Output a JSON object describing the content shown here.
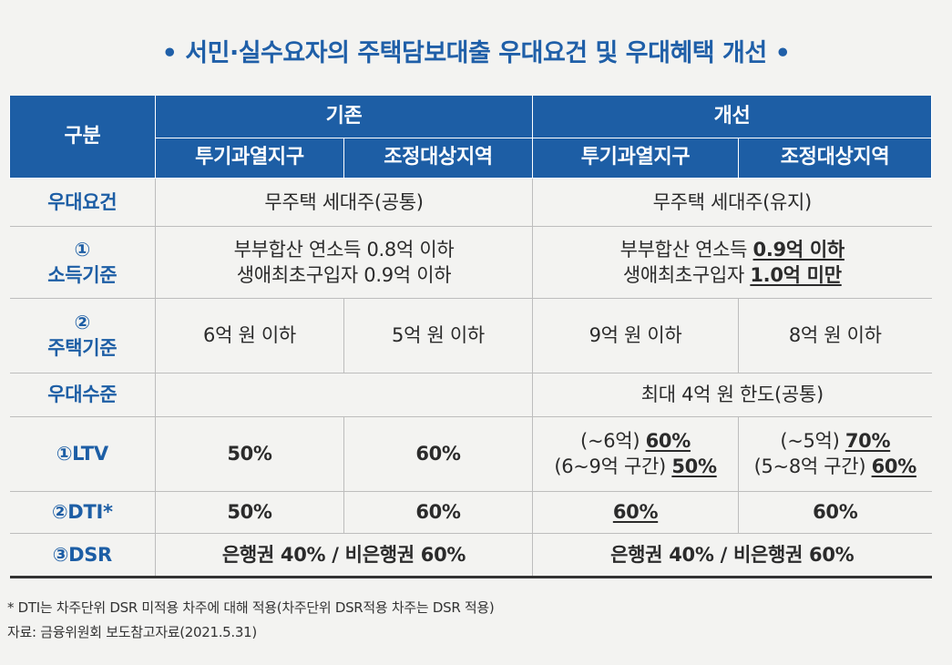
{
  "title": "• 서민·실수요자의 주택담보대출 우대요건 및 우대혜택 개선 •",
  "header": {
    "category": "구분",
    "existing": "기존",
    "improved": "개선",
    "sub1": "투기과열지구",
    "sub2": "조정대상지역",
    "sub3": "투기과열지구",
    "sub4": "조정대상지역"
  },
  "rows": {
    "req": {
      "label": "우대요건",
      "existing": "무주택 세대주(공통)",
      "improved": "무주택 세대주(유지)"
    },
    "income": {
      "label1": "①",
      "label2": "소득기준",
      "existing_l1": "부부합산 연소득 0.8억 이하",
      "existing_l2": "생애최초구입자 0.9억 이하",
      "improved_l1_pre": "부부합산 연소득 ",
      "improved_l1_val": "0.9억 이하",
      "improved_l2_pre": "생애최초구입자 ",
      "improved_l2_val": "1.0억 미만"
    },
    "house": {
      "label1": "②",
      "label2": "주택기준",
      "c1": "6억 원 이하",
      "c2": "5억 원 이하",
      "c3": "9억 원 이하",
      "c4": "8억 원 이하"
    },
    "level": {
      "label": "우대수준",
      "existing": "",
      "improved": "최대 4억 원 한도(공통)"
    },
    "ltv": {
      "label": "①LTV",
      "c1": "50%",
      "c2": "60%",
      "c3_l1_pre": "(~6억) ",
      "c3_l1_val": "60%",
      "c3_l2_pre": "(6~9억 구간) ",
      "c3_l2_val": "50%",
      "c4_l1_pre": "(~5억) ",
      "c4_l1_val": "70%",
      "c4_l2_pre": "(5~8억 구간) ",
      "c4_l2_val": "60%"
    },
    "dti": {
      "label": "②DTI*",
      "c1": "50%",
      "c2": "60%",
      "c3": "60%",
      "c4": "60%"
    },
    "dsr": {
      "label": "③DSR",
      "existing": "은행권 40% / 비은행권 60%",
      "improved": "은행권 40% / 비은행권 60%"
    }
  },
  "notes": {
    "footnote": "* DTI는 차주단위 DSR 미적용 차주에 대해 적용(차주단위 DSR적용 차주는 DSR 적용)",
    "source": "자료: 금융위원회 보도참고자료(2021.5.31)"
  },
  "colors": {
    "accent": "#1d5ea5",
    "background": "#f3f3f1"
  }
}
